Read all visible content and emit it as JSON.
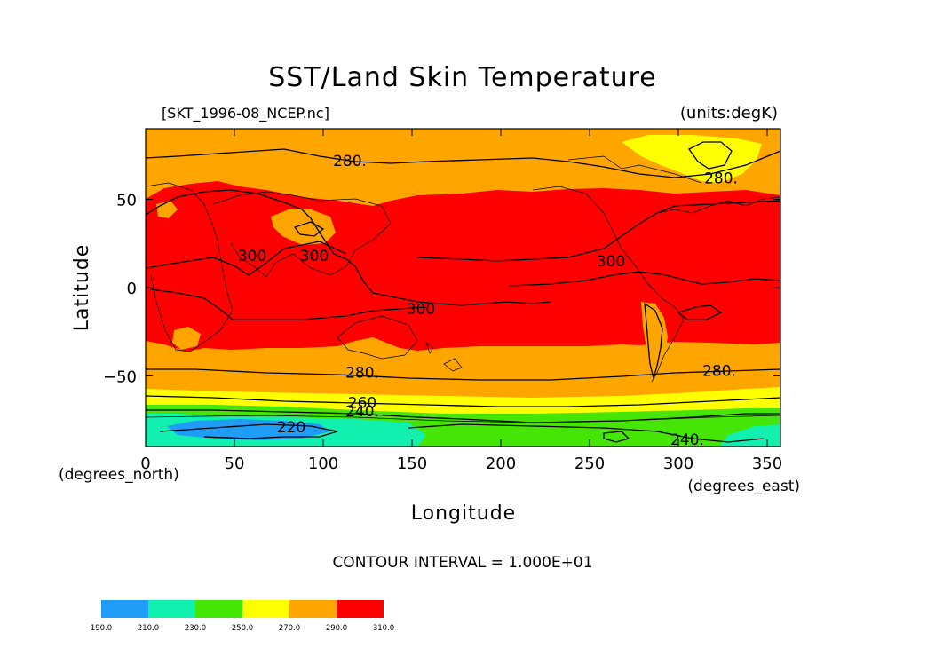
{
  "title": "SST/Land Skin Temperature",
  "file_label": "[SKT_1996-08_NCEP.nc]",
  "units_label": "(units:degK)",
  "ylabel": "Latitude",
  "xlabel": "Longitude",
  "y_units": "(degrees_north)",
  "x_units": "(degrees_east)",
  "contour_interval": "CONTOUR INTERVAL = 1.000E+01",
  "chart_data": {
    "type": "heatmap",
    "x_ticks": [
      "0",
      "50",
      "100",
      "150",
      "200",
      "250",
      "300",
      "350"
    ],
    "x_tick_values": [
      0,
      50,
      100,
      150,
      200,
      250,
      300,
      350
    ],
    "y_ticks": [
      "50",
      "0",
      "−50"
    ],
    "y_tick_values": [
      50,
      0,
      -50
    ],
    "xlim": [
      0,
      357.5
    ],
    "ylim": [
      -90,
      90
    ],
    "contour_labels": [
      {
        "text": "280.",
        "x": 115,
        "y": 72
      },
      {
        "text": "280.",
        "x": 324,
        "y": 62
      },
      {
        "text": "300",
        "x": 60,
        "y": 18
      },
      {
        "text": "300",
        "x": 95,
        "y": 18
      },
      {
        "text": "300",
        "x": 155,
        "y": -12
      },
      {
        "text": "300",
        "x": 262,
        "y": 15
      },
      {
        "text": "280.",
        "x": 122,
        "y": -48
      },
      {
        "text": "280.",
        "x": 323,
        "y": -47
      },
      {
        "text": "260",
        "x": 122,
        "y": -65
      },
      {
        "text": "240.",
        "x": 122,
        "y": -70
      },
      {
        "text": "220",
        "x": 82,
        "y": -79
      },
      {
        "text": "240.",
        "x": 305,
        "y": -86
      }
    ],
    "colorbar": {
      "levels": [
        "190.0",
        "210.0",
        "230.0",
        "250.0",
        "270.0",
        "290.0",
        "310.0"
      ],
      "colors": [
        "#1f9cf5",
        "#12f0b0",
        "#45e605",
        "#ffff00",
        "#ffa500",
        "#ff0000"
      ]
    },
    "bands": [
      {
        "range": "<230",
        "color": "#12f0b0"
      },
      {
        "range": "250-270",
        "color": "#ffff00"
      },
      {
        "range": "270-290",
        "color": "#ffa500"
      },
      {
        "range": ">290",
        "color": "#ff0000"
      }
    ]
  }
}
